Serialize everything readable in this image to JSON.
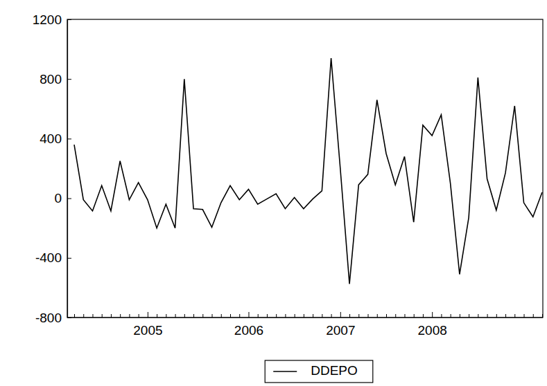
{
  "chart_data": {
    "type": "line",
    "categories": [
      null,
      null,
      null,
      null,
      null,
      null,
      null,
      null,
      "2005",
      null,
      null,
      null,
      null,
      null,
      null,
      null,
      null,
      null,
      null,
      "2006",
      null,
      null,
      null,
      null,
      null,
      null,
      null,
      null,
      null,
      "2007",
      null,
      null,
      null,
      null,
      null,
      null,
      null,
      null,
      null,
      "2008",
      null,
      null,
      null,
      null,
      null,
      null,
      null,
      null,
      null,
      null,
      null,
      null
    ],
    "series": [
      {
        "name": "DDEPO",
        "color": "#000000",
        "values": [
          360,
          -10,
          -85,
          85,
          -85,
          250,
          -10,
          105,
          -10,
          -200,
          -40,
          -200,
          800,
          -70,
          -75,
          -195,
          -30,
          85,
          -10,
          60,
          -40,
          -5,
          30,
          -70,
          5,
          -70,
          -5,
          50,
          940,
          200,
          -575,
          90,
          160,
          660,
          300,
          90,
          280,
          -160,
          490,
          420,
          560,
          100,
          -510,
          -130,
          810,
          130,
          -80,
          170,
          620,
          -30,
          -125,
          40
        ]
      }
    ],
    "ylim": [
      -800,
      1200
    ],
    "yticks": [
      -800,
      -400,
      0,
      400,
      800,
      1200
    ],
    "grid": false,
    "legend": "bottom"
  }
}
